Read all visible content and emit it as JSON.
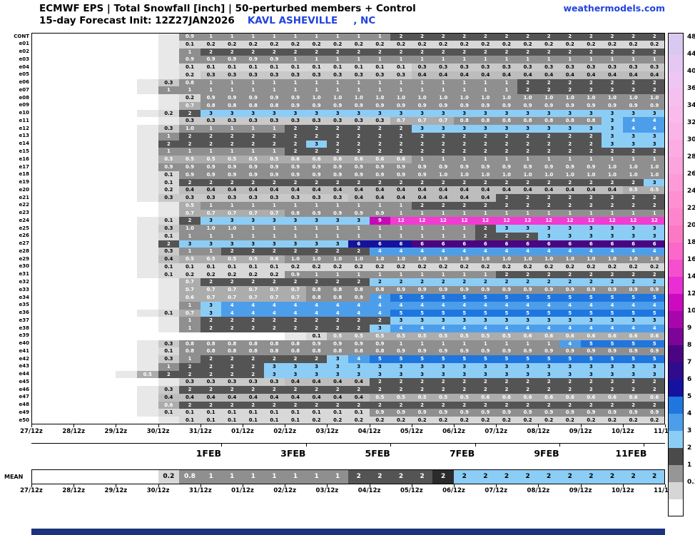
{
  "header": {
    "title_line1": "ECMWF EPS | Total Snowfall [inch] | 50-perturbed members + Control",
    "title_line2_prefix": "15-day Forecast Init: 12Z27JAN2026",
    "station": "KAVL ASHEVILLE",
    "station_suffix": ", NC",
    "brand": "weathermodels.com"
  },
  "colors": {
    "accent_blue": "#2244DD",
    "footer_navy": "#1B337E"
  },
  "chart_data": {
    "type": "heatmap",
    "title": "ECMWF EPS Total Snowfall [inch] ensemble plume grid",
    "x_tick_labels": [
      "27/12z",
      "28/12z",
      "29/12z",
      "30/12z",
      "31/12z",
      "01/12z",
      "02/12z",
      "03/12z",
      "04/12z",
      "05/12z",
      "06/12z",
      "07/12z",
      "08/12z",
      "09/12z",
      "10/12z",
      "11/12z"
    ],
    "x_day_labels": [
      "1FEB",
      "3FEB",
      "5FEB",
      "7FEB",
      "9FEB",
      "11FEB"
    ],
    "cells_per_row": 30,
    "cell_interval_hours": 12,
    "rows": [
      {
        "id": "CONT",
        "start": 7,
        "values": [
          "0.9",
          "1*9",
          "2*13"
        ]
      },
      {
        "id": "e01",
        "start": 7,
        "values": [
          "0.1",
          "0.2*22"
        ]
      },
      {
        "id": "e02",
        "start": 7,
        "values": [
          "1",
          "2*22"
        ]
      },
      {
        "id": "e03",
        "start": 7,
        "values": [
          "0.9*5",
          "1*18"
        ]
      },
      {
        "id": "e04",
        "start": 7,
        "values": [
          "0.1*11",
          "0.3*12"
        ]
      },
      {
        "id": "e05",
        "start": 7,
        "values": [
          "0.2",
          "0.3*10",
          "0.4*12"
        ]
      },
      {
        "id": "e06",
        "start": 6,
        "values": [
          "0.3",
          "0.8",
          "1*15",
          "2*7"
        ]
      },
      {
        "id": "e07",
        "start": 6,
        "values": [
          "1*17",
          "2*7"
        ]
      },
      {
        "id": "e08",
        "start": 7,
        "values": [
          "0.2",
          "0.9*5",
          "1.0*17"
        ]
      },
      {
        "id": "e09",
        "start": 7,
        "values": [
          "0.7",
          "0.8*4",
          "0.9*18"
        ]
      },
      {
        "id": "e10",
        "start": 6,
        "values": [
          "0.2",
          "2",
          "3*22"
        ]
      },
      {
        "id": "e11",
        "start": 7,
        "values": [
          "0.3*10",
          "0.7*3",
          "0.8*7",
          "3",
          "4*2"
        ]
      },
      {
        "id": "e12",
        "start": 6,
        "values": [
          "0.3",
          "1.0",
          "1*4",
          "2*6",
          "3*10",
          "4*2"
        ]
      },
      {
        "id": "e13",
        "start": 6,
        "values": [
          "1",
          "2*20",
          "3*3"
        ]
      },
      {
        "id": "e14",
        "start": 6,
        "values": [
          "2*7",
          "3",
          "2*13",
          "3*3"
        ]
      },
      {
        "id": "e15",
        "start": 6,
        "values": [
          "1*6",
          "2*18"
        ]
      },
      {
        "id": "e16",
        "start": 6,
        "values": [
          "0.5*6",
          "0.6*6",
          "1*12"
        ]
      },
      {
        "id": "e17",
        "start": 6,
        "values": [
          "0.9*21",
          "1.0*3"
        ]
      },
      {
        "id": "e18",
        "start": 6,
        "values": [
          "0.1",
          "0.9*12",
          "1.0*11"
        ]
      },
      {
        "id": "e19",
        "start": 6,
        "values": [
          "0.1",
          "2*22",
          "3"
        ]
      },
      {
        "id": "e20",
        "start": 6,
        "values": [
          "0.2",
          "0.4*21",
          "0.5*2"
        ]
      },
      {
        "id": "e21",
        "start": 6,
        "values": [
          "0.3*9",
          "0.4*7",
          "2*8"
        ]
      },
      {
        "id": "e22",
        "start": 7,
        "values": [
          "0.5",
          "1*10",
          "2*12"
        ]
      },
      {
        "id": "e23",
        "start": 7,
        "values": [
          "0.7*5",
          "0.8",
          "0.9*4",
          "1*13"
        ]
      },
      {
        "id": "e24",
        "start": 6,
        "values": [
          "0.1",
          "2",
          "3*8",
          "9",
          "12*13"
        ]
      },
      {
        "id": "e25",
        "start": 6,
        "values": [
          "0.3",
          "1.0*3",
          "1*11",
          "2",
          "3*8"
        ]
      },
      {
        "id": "e26",
        "start": 6,
        "values": [
          "0.1",
          "1*14",
          "2*3",
          "3*6"
        ]
      },
      {
        "id": "e27",
        "start": 6,
        "values": [
          "2",
          "3*8",
          "6*3",
          "6:8*12"
        ]
      },
      {
        "id": "e28",
        "start": 6,
        "values": [
          "0.3",
          "1*2",
          "2*7",
          "4*14"
        ]
      },
      {
        "id": "e29",
        "start": 6,
        "values": [
          "0.4",
          "0.5*4",
          "0.6",
          "1.0*18"
        ]
      },
      {
        "id": "e30",
        "start": 6,
        "values": [
          "0.1*6",
          "0.2*18"
        ]
      },
      {
        "id": "e31",
        "start": 6,
        "values": [
          "0.1",
          "0.2*5",
          "0.9",
          "1*9",
          "2*8"
        ]
      },
      {
        "id": "e32",
        "start": 7,
        "values": [
          "0.7",
          "2*8",
          "2:3*14"
        ]
      },
      {
        "id": "e33",
        "start": 7,
        "values": [
          "0.7*6",
          "0.8*4",
          "0.9*13"
        ]
      },
      {
        "id": "e34",
        "start": 7,
        "values": [
          "0.6",
          "0.7*5",
          "0.8*2",
          "0.9",
          "4",
          "5*13"
        ]
      },
      {
        "id": "e35",
        "start": 7,
        "values": [
          "1",
          "3",
          "4*21"
        ]
      },
      {
        "id": "e36",
        "start": 6,
        "values": [
          "0.1",
          "0.7",
          "3",
          "4*8",
          "5*13"
        ]
      },
      {
        "id": "e37",
        "start": 7,
        "values": [
          "1",
          "2*9",
          "3*13"
        ]
      },
      {
        "id": "e38",
        "start": 7,
        "values": [
          "1",
          "2*8",
          "3",
          "4*13"
        ]
      },
      {
        "id": "e39",
        "start": 13,
        "values": [
          "0.1",
          "0.5*9",
          "0.6*7"
        ]
      },
      {
        "id": "e40",
        "start": 6,
        "values": [
          "0.3",
          "0.8*6",
          "0.9*4",
          "1*8",
          "4",
          "5*4"
        ]
      },
      {
        "id": "e41",
        "start": 6,
        "values": [
          "0.1",
          "0.8*10",
          "0.9*13"
        ]
      },
      {
        "id": "e42",
        "start": 6,
        "values": [
          "0.3",
          "1",
          "2*6",
          "3",
          "4",
          "5*14"
        ]
      },
      {
        "id": "e43",
        "start": 6,
        "values": [
          "1",
          "2*4",
          "3*19"
        ]
      },
      {
        "id": "e44",
        "start": 5,
        "values": [
          "0.5",
          "2*5",
          "3*19"
        ]
      },
      {
        "id": "e45",
        "start": 7,
        "values": [
          "0.3*5",
          "0.4*4",
          "2*14"
        ]
      },
      {
        "id": "e46",
        "start": 6,
        "values": [
          "0.3",
          "2*23"
        ]
      },
      {
        "id": "e47",
        "start": 6,
        "values": [
          "0.4*10",
          "0.5*5",
          "0.6*9"
        ]
      },
      {
        "id": "e48",
        "start": 6,
        "values": [
          "0.6",
          "2*23"
        ]
      },
      {
        "id": "e49",
        "start": 6,
        "values": [
          "0.1*10",
          "0.9*14"
        ]
      },
      {
        "id": "e50",
        "start": 7,
        "values": [
          "0.1*6",
          "0.2*17"
        ]
      }
    ],
    "mean_row": {
      "id": "MEAN",
      "start": 6,
      "values": [
        "0.2",
        "0.8",
        "1*7",
        "2*4",
        "2:x",
        "2:3*10"
      ]
    },
    "cell_colors": {
      "stub": "#E8E8E8",
      "0.1": "#D8D8D8",
      "0.3": "#C9C9C9",
      "0.4": "#BDBDBD",
      "0.5": "#ACACAC",
      "0.8": "#9A9A9A",
      "1": "#8F8F8F",
      "2": "#545454",
      "3": "#8CCDF6",
      "4": "#4D9EEA",
      "5": "#2076DF",
      "6": "#14129E",
      "7": "#2F0B8E",
      "8": "#4B0482",
      "9": "#C608B8",
      "12": "#F23BD2",
      "x": "#2B2B2B"
    },
    "colorbar": {
      "labels": [
        "48",
        "44",
        "40",
        "36",
        "34",
        "32",
        "30",
        "28",
        "26",
        "24",
        "22",
        "20",
        "18",
        "16",
        "14",
        "12",
        "10",
        "9",
        "8",
        "7",
        "6",
        "5",
        "4",
        "3",
        "2",
        "1",
        "0.1"
      ],
      "band_colors_top_to_bottom": [
        "#D9C9F0",
        "#E4C7F2",
        "#EFC5F3",
        "#F5C0F0",
        "#F9BBEC",
        "#FBB4E8",
        "#FCACE3",
        "#FDA4DE",
        "#FE9AD8",
        "#FE90D2",
        "#FE85CB",
        "#FD78C4",
        "#FB68C9",
        "#F54FD0",
        "#E92ED3",
        "#CC0ABF",
        "#A706AC",
        "#7C0498",
        "#4B0482",
        "#2F0B8E",
        "#14129E",
        "#2076DF",
        "#4D9EEA",
        "#8CCDF6",
        "#4A4A4A",
        "#969696",
        "#D6D6D6"
      ],
      "below_min_color": "#FFFFFF"
    }
  }
}
